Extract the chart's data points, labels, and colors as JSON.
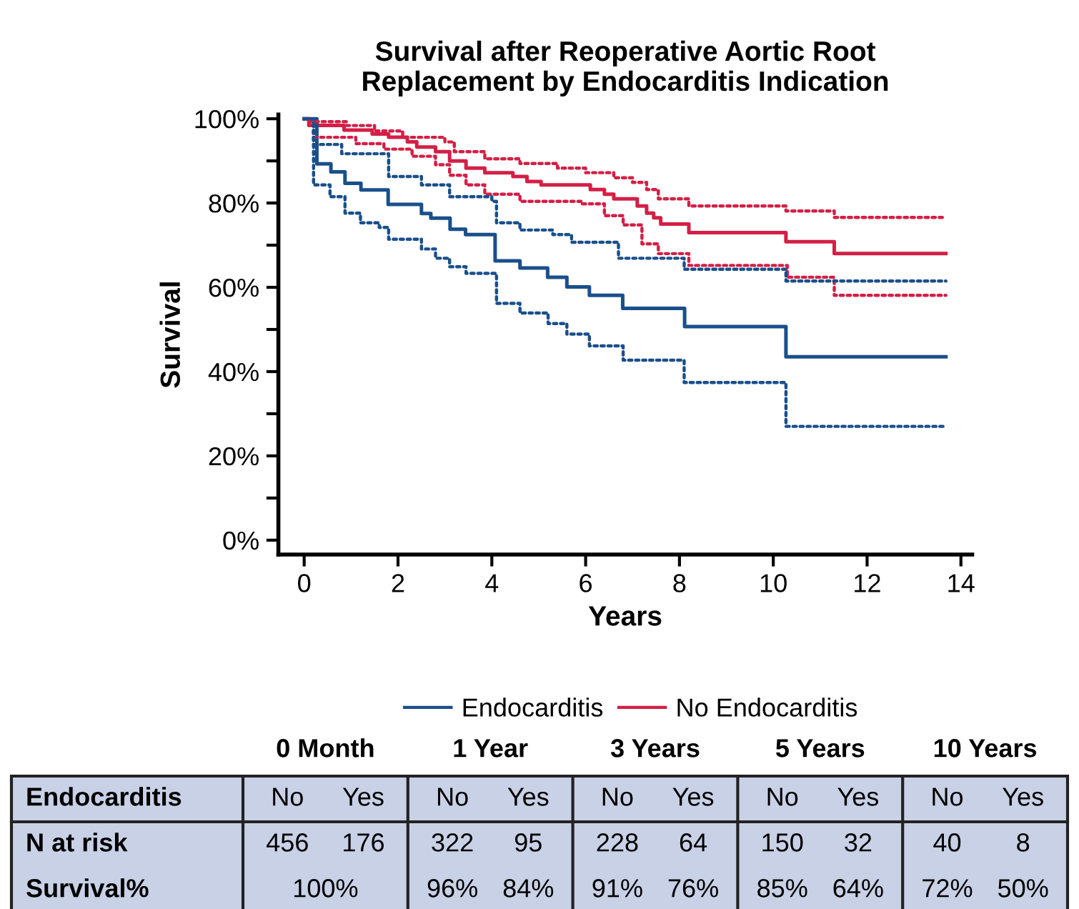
{
  "chart_data": {
    "type": "step",
    "title": "Survival after Reoperative Aortic Root\nReplacement by Endocarditis Indication",
    "xlabel": "Years",
    "ylabel": "Survival",
    "xlim": [
      -0.55,
      14.24
    ],
    "xticks": [
      0,
      2,
      4,
      6,
      8,
      10,
      12,
      14
    ],
    "ylim": [
      -3.4,
      101
    ],
    "yticks": [
      {
        "value": 0,
        "label": "0%"
      },
      {
        "value": 10,
        "label": null
      },
      {
        "value": 20,
        "label": "20%"
      },
      {
        "value": 30,
        "label": null
      },
      {
        "value": 40,
        "label": "40%"
      },
      {
        "value": 50,
        "label": null
      },
      {
        "value": 60,
        "label": "60%"
      },
      {
        "value": 70,
        "label": null
      },
      {
        "value": 80,
        "label": "80%"
      },
      {
        "value": 90,
        "label": null
      },
      {
        "value": 100,
        "label": "100%"
      }
    ],
    "grid": false,
    "legend": "bottom",
    "series": [
      {
        "name": "Endocarditis",
        "color": "#1a4f8a",
        "line_style": "solid",
        "x": [
          0,
          0.27,
          0.57,
          0.87,
          1.21,
          1.79,
          2.5,
          2.7,
          3.11,
          3.44,
          4.07,
          4.6,
          5.19,
          5.6,
          6.08,
          6.79,
          8.11,
          10.27,
          13.68
        ],
        "values": [
          100,
          89.3,
          87.4,
          84.7,
          83.1,
          79.7,
          77.5,
          76.4,
          73.8,
          72.5,
          66.3,
          64.6,
          62.4,
          60.1,
          58.1,
          55.0,
          50.7,
          43.5,
          43.5
        ]
      },
      {
        "color": "#1a4f8a",
        "line_style": "dotted",
        "x": [
          0,
          0.2,
          0.8,
          1.8,
          2.5,
          3.1,
          4.0,
          4.1,
          4.6,
          5.3,
          5.7,
          6.7,
          8.1,
          10.27,
          13.68
        ],
        "values": [
          100,
          93.9,
          91.7,
          86.3,
          84.3,
          81.5,
          80.4,
          75.3,
          73.6,
          72.5,
          70.7,
          66.9,
          64.3,
          61.5,
          61.5
        ]
      },
      {
        "color": "#1a4f8a",
        "line_style": "dotted",
        "x": [
          0,
          0.2,
          0.55,
          0.87,
          1.2,
          1.6,
          1.8,
          2.5,
          2.8,
          3.1,
          3.45,
          4.1,
          4.6,
          5.2,
          5.6,
          6.08,
          6.8,
          8.1,
          10.27,
          13.68
        ],
        "values": [
          100,
          84.3,
          81.5,
          77.6,
          75.3,
          74.2,
          71.4,
          69.1,
          66.9,
          64.9,
          63.3,
          56.2,
          53.9,
          51.4,
          48.9,
          46.1,
          42.7,
          37.4,
          27.0,
          27.0
        ]
      },
      {
        "name": "No Endocarditis",
        "color": "#d31f46",
        "line_style": "solid",
        "x": [
          0,
          0.1,
          0.85,
          1.45,
          1.8,
          2.2,
          2.4,
          2.8,
          3.1,
          3.45,
          3.85,
          4.45,
          4.75,
          5.05,
          6.1,
          6.4,
          6.6,
          7.1,
          7.3,
          7.45,
          7.6,
          8.2,
          10.27,
          11.3,
          13.68
        ],
        "values": [
          100,
          98.4,
          97.3,
          96.4,
          95.6,
          94.5,
          93.3,
          92.2,
          90.0,
          88.3,
          87.2,
          86.3,
          85.1,
          84.3,
          83.2,
          82.1,
          81.0,
          79.3,
          77.6,
          76.5,
          75.0,
          73.0,
          70.8,
          68.0,
          68.0
        ]
      },
      {
        "color": "#d31f46",
        "line_style": "dotted",
        "x": [
          0,
          0.1,
          0.9,
          1.5,
          2.1,
          3.0,
          3.2,
          3.85,
          4.6,
          5.4,
          6.0,
          6.6,
          7.0,
          7.3,
          7.55,
          8.2,
          10.27,
          11.3,
          13.68
        ],
        "values": [
          100,
          99.3,
          98.4,
          97.1,
          95.6,
          94.5,
          92.2,
          90.5,
          89.4,
          88.3,
          87.2,
          86.0,
          84.9,
          83.2,
          81.0,
          79.3,
          78.1,
          76.6,
          76.6
        ]
      },
      {
        "color": "#d31f46",
        "line_style": "dotted",
        "x": [
          0,
          0.2,
          1.1,
          1.7,
          2.3,
          2.8,
          3.1,
          3.45,
          3.85,
          4.6,
          5.9,
          6.4,
          6.8,
          7.2,
          7.55,
          8.2,
          10.3,
          11.3,
          13.68
        ],
        "values": [
          100,
          95.6,
          94.1,
          92.8,
          91.1,
          89.1,
          86.6,
          84.3,
          82.1,
          80.4,
          79.8,
          77.0,
          74.8,
          70.3,
          68.0,
          65.2,
          62.4,
          58.1,
          58.1
        ]
      }
    ],
    "annotations": [
      "0 Month",
      "1 Year",
      "3 Years",
      "5 Years",
      "10 Years",
      "Endocarditis",
      "No",
      "Yes",
      "No",
      "Yes",
      "No",
      "Yes",
      "No",
      "Yes",
      "No",
      "Yes",
      "N at risk",
      "456",
      "176",
      "322",
      "95",
      "228",
      "64",
      "150",
      "32",
      "40",
      "8",
      "Survival%",
      "100%",
      "96%",
      "84%",
      "91%",
      "76%",
      "85%",
      "64%",
      "72%",
      "50%"
    ]
  }
}
